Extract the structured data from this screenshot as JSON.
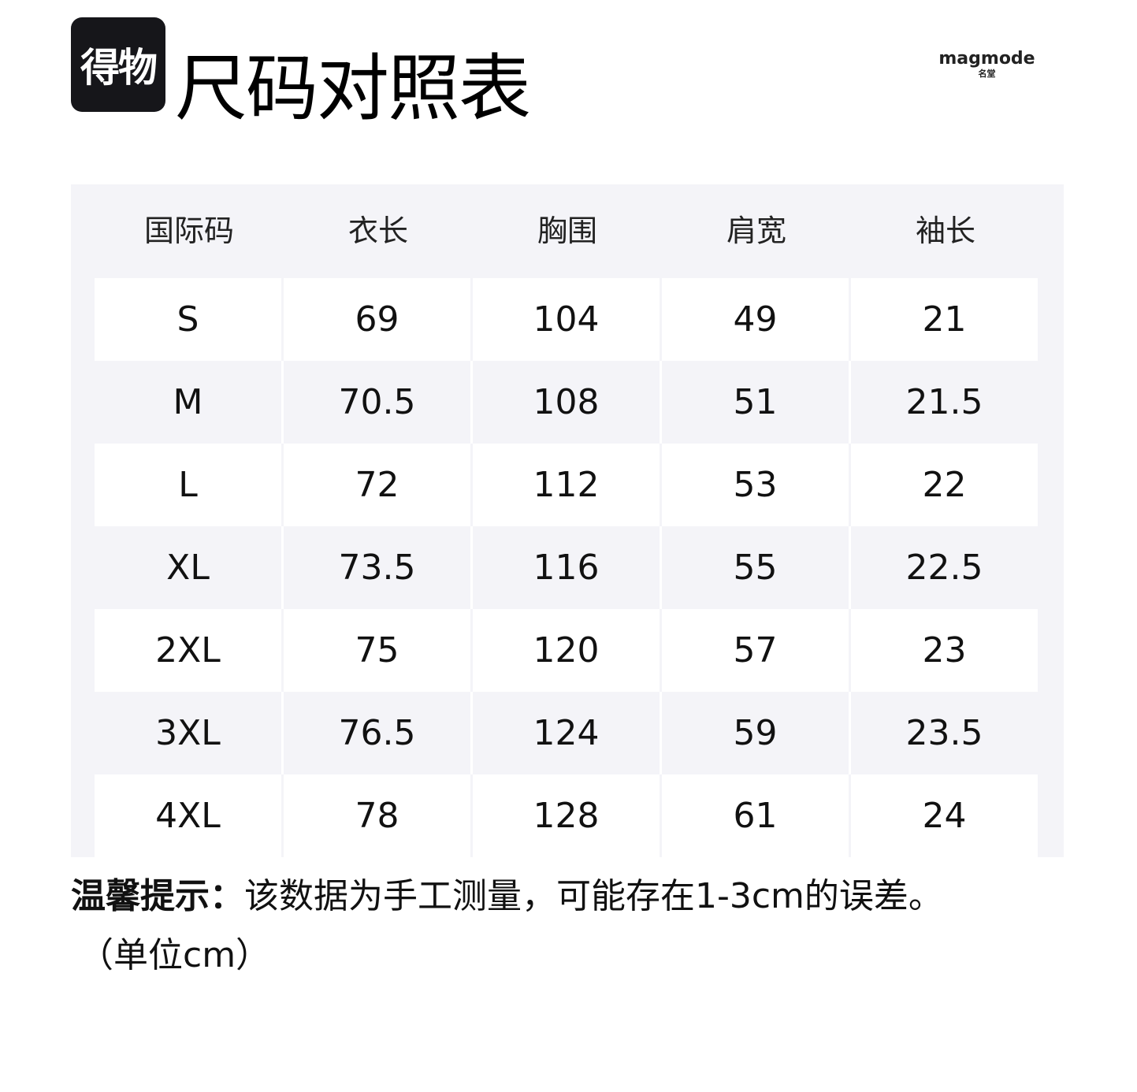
{
  "logo": {
    "text": "得物"
  },
  "title": "尺码对照表",
  "brand": {
    "en": "magmode",
    "cn": "名堂"
  },
  "table": {
    "headers": [
      "国际码",
      "衣长",
      "胸围",
      "肩宽",
      "袖长"
    ],
    "rows": [
      [
        "S",
        "69",
        "104",
        "49",
        "21"
      ],
      [
        "M",
        "70.5",
        "108",
        "51",
        "21.5"
      ],
      [
        "L",
        "72",
        "112",
        "53",
        "22"
      ],
      [
        "XL",
        "73.5",
        "116",
        "55",
        "22.5"
      ],
      [
        "2XL",
        "75",
        "120",
        "57",
        "23"
      ],
      [
        "3XL",
        "76.5",
        "124",
        "59",
        "23.5"
      ],
      [
        "4XL",
        "78",
        "128",
        "61",
        "24"
      ]
    ]
  },
  "note": {
    "label": "温馨提示：",
    "text": "该数据为手工测量，可能存在1-3cm的误差。",
    "unit": "（单位cm）"
  },
  "colors": {
    "panel": "#f4f4f8",
    "logo_bg": "#16161a"
  }
}
